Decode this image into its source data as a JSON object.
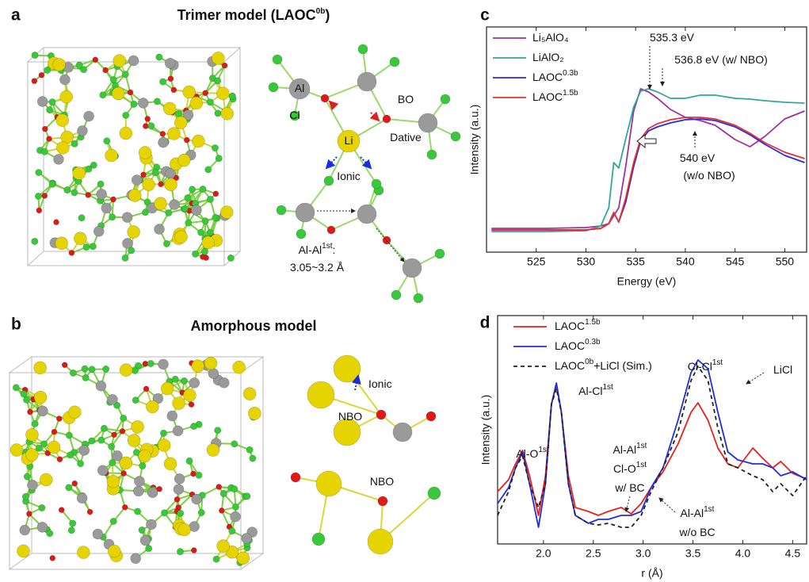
{
  "panels": {
    "a": {
      "letter": "a",
      "title": {
        "text": "Trimer model (LAOC",
        "sup": "0b",
        "end": ")"
      },
      "labels": [
        {
          "text": "Al"
        },
        {
          "text": "Cl"
        },
        {
          "text": "Li"
        },
        {
          "text": "BO",
          "color": "#e02020"
        },
        {
          "text": "Dative",
          "color": "#e02020"
        },
        {
          "text": "Ionic",
          "color": "#1a2ee0"
        },
        {
          "text": "Al-Al",
          "sup": "1st",
          "end": ":"
        },
        {
          "text": "3.05~3.2 Å"
        }
      ]
    },
    "b": {
      "letter": "b",
      "title": {
        "text": "Amorphous model"
      },
      "labels": [
        {
          "text": "Ionic",
          "color": "#1a2ee0"
        },
        {
          "text": "NBO",
          "color": "#e02020"
        },
        {
          "text": "NBO",
          "color": "#e02020"
        }
      ]
    }
  },
  "chart_data": [
    {
      "type": "line",
      "panel_label": "c",
      "xlabel": "Energy (eV)",
      "ylabel": "Intensity (a.u.)",
      "x": [
        520.5,
        526,
        530,
        531.5,
        532.3,
        532.8,
        533.3,
        534,
        534.8,
        535.5,
        536.3,
        537.2,
        538.5,
        540,
        541.5,
        543,
        545,
        546.5,
        548,
        550,
        552
      ],
      "xlim": [
        520,
        552.2
      ],
      "xticks": [
        525,
        530,
        535,
        540,
        545,
        550
      ],
      "ylim": [
        0,
        284
      ],
      "series": [
        {
          "name": "Li₅AlO₄",
          "color": "#a0309a",
          "values": [
            30,
            30,
            31,
            33,
            36,
            46,
            56,
            108,
            178,
            206,
            202,
            194,
            180,
            170,
            166,
            160,
            142,
            133,
            146,
            168,
            178
          ]
        },
        {
          "name": "LiAlO₂",
          "color": "#2fa898",
          "values": [
            26,
            26,
            27,
            33,
            56,
            113,
            106,
            143,
            183,
            203,
            206,
            202,
            194,
            194,
            198,
            198,
            194,
            193,
            191,
            189,
            188
          ]
        },
        {
          "name": "LAOC",
          "name_sup": "0.3b",
          "color": "#2a2ae0",
          "values": [
            28,
            28,
            28,
            30,
            36,
            50,
            38,
            63,
            108,
            140,
            153,
            158,
            163,
            167,
            168,
            166,
            158,
            148,
            136,
            122,
            113
          ]
        },
        {
          "name": "LAOC",
          "name_sup": "1.5b",
          "color": "#e83030",
          "values": [
            28,
            28,
            28,
            30,
            36,
            50,
            38,
            68,
            113,
            143,
            156,
            162,
            167,
            170,
            170,
            168,
            160,
            150,
            138,
            126,
            118
          ]
        }
      ],
      "annotations": [
        {
          "text": "535.3 eV"
        },
        {
          "text": "536.8 eV (w/ NBO)"
        },
        {
          "text": "540 eV"
        },
        {
          "text": "(w/o NBO)"
        }
      ]
    },
    {
      "type": "line",
      "panel_label": "d",
      "xlabel": "r (Å)",
      "ylabel": "Intensity (a.u.)",
      "x": [
        1.54,
        1.65,
        1.72,
        1.79,
        1.86,
        1.95,
        2.02,
        2.08,
        2.13,
        2.18,
        2.25,
        2.32,
        2.45,
        2.55,
        2.65,
        2.78,
        2.88,
        2.98,
        3.08,
        3.2,
        3.35,
        3.48,
        3.55,
        3.65,
        3.75,
        3.85,
        3.95,
        4.1,
        4.2,
        4.3,
        4.38,
        4.5,
        4.64
      ],
      "xlim": [
        1.54,
        4.64
      ],
      "xticks": [
        {
          "value": 2,
          "label": "2.0"
        },
        2.5,
        {
          "value": 3,
          "label": "3.0"
        },
        3.5,
        {
          "value": 4,
          "label": "4.0"
        },
        4.5
      ],
      "ylim": [
        0,
        288
      ],
      "series": [
        {
          "name": "LAOC",
          "name_sup": "1.5b",
          "color": "#e82020",
          "values": [
            66,
            81,
            101,
            118,
            86,
            36,
            86,
            176,
            201,
            166,
            86,
            46,
            41,
            36,
            41,
            46,
            38,
            51,
            71,
            91,
            126,
            166,
            178,
            156,
            121,
            101,
            96,
            121,
            108,
            96,
            104,
            89,
            82
          ]
        },
        {
          "name": "LAOC",
          "name_sup": "0.3b",
          "color": "#1f2ee0",
          "values": [
            51,
            71,
            96,
            116,
            76,
            21,
            76,
            176,
            203,
            166,
            76,
            36,
            26,
            31,
            31,
            36,
            36,
            41,
            71,
            96,
            156,
            216,
            232,
            221,
            166,
            116,
            106,
            101,
            101,
            96,
            86,
            91,
            81
          ]
        },
        {
          "name": "LAOC",
          "name_sup": "0b",
          "name_end": "+LiCl (Sim.)",
          "color": "#222222",
          "dash": true,
          "values": [
            36,
            66,
            96,
            111,
            76,
            46,
            76,
            176,
            196,
            166,
            76,
            36,
            26,
            24,
            26,
            21,
            21,
            36,
            66,
            96,
            141,
            206,
            224,
            206,
            146,
            101,
            96,
            86,
            81,
            66,
            76,
            61,
            86
          ]
        }
      ],
      "annotations": [
        {
          "text": "Cl-Cl",
          "sup": "1st"
        },
        {
          "text": "LiCl"
        },
        {
          "text": "Al-Cl",
          "sup": "1st"
        },
        {
          "text": "Al-O",
          "sup": "1st"
        },
        {
          "text": "Al-Al",
          "sup": "1st",
          "color": "#e82020"
        },
        {
          "text": "Cl-O",
          "sup": "1st",
          "color": "#e82020"
        },
        {
          "text": "w/ BC",
          "color": "#e82020"
        },
        {
          "text": "Al-Al",
          "sup": "1st",
          "color": "#1f2ee0"
        },
        {
          "text": "w/o BC",
          "color": "#1f2ee0"
        }
      ]
    }
  ]
}
